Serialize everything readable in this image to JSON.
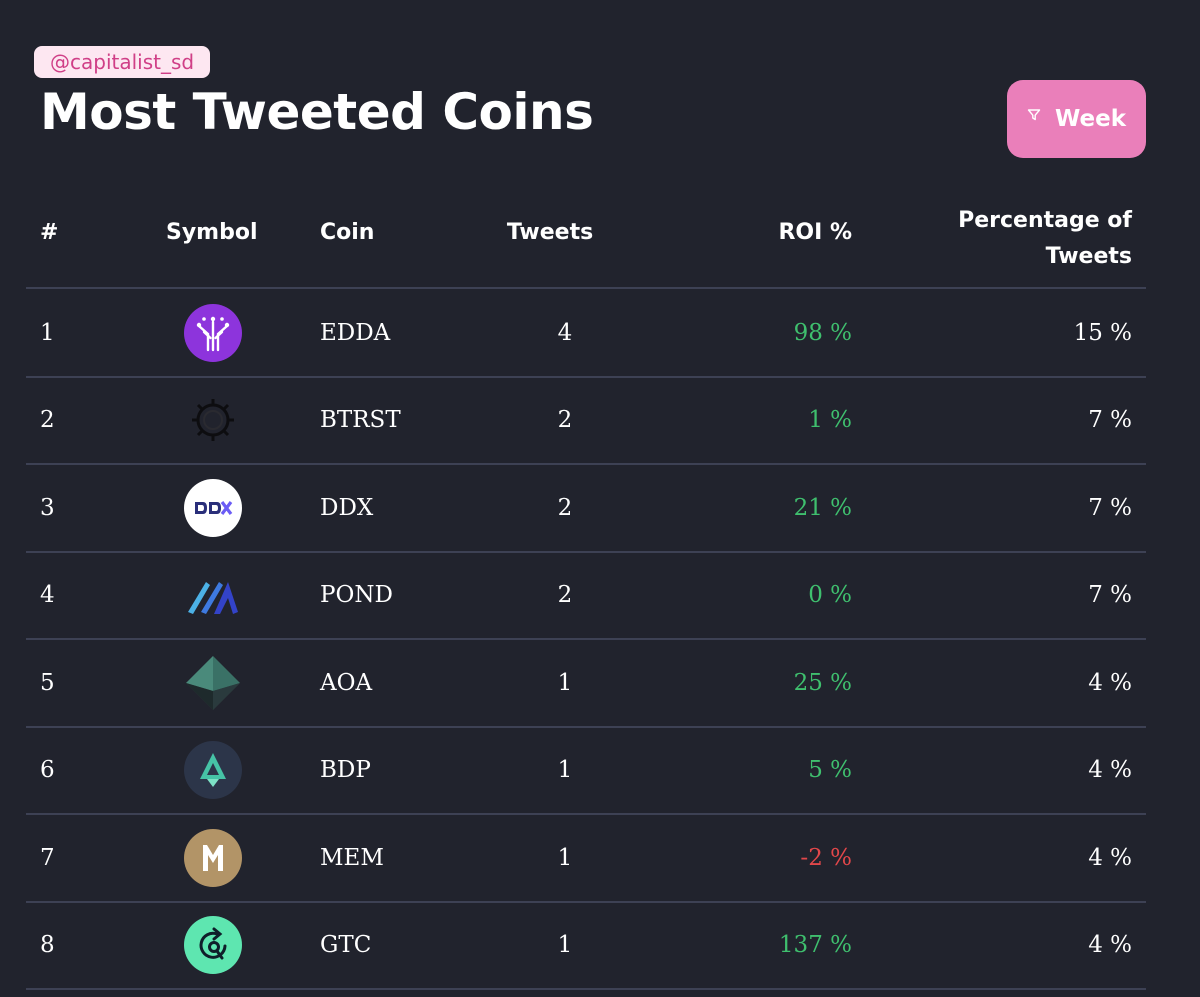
{
  "handle": "@capitalist_sd",
  "title": "Most Tweeted Coins",
  "filter": {
    "label": "Week",
    "icon": "filter-icon"
  },
  "columns": {
    "num": "#",
    "symbol": "Symbol",
    "coin": "Coin",
    "tweets": "Tweets",
    "roi": "ROI %",
    "pct_line1": "Percentage of",
    "pct_line2": "Tweets"
  },
  "colors": {
    "positive": "#3fbf6e",
    "negative": "#e2474a",
    "accent": "#ea7fba"
  },
  "rows": [
    {
      "num": "1",
      "coin": "EDDA",
      "icon": "edda-logo-icon",
      "tweets": "4",
      "roi": "98 %",
      "roi_sign": "pos",
      "pct": "15 %"
    },
    {
      "num": "2",
      "coin": "BTRST",
      "icon": "btrst-logo-icon",
      "tweets": "2",
      "roi": "1 %",
      "roi_sign": "pos",
      "pct": "7 %"
    },
    {
      "num": "3",
      "coin": "DDX",
      "icon": "ddx-logo-icon",
      "tweets": "2",
      "roi": "21 %",
      "roi_sign": "pos",
      "pct": "7 %"
    },
    {
      "num": "4",
      "coin": "POND",
      "icon": "pond-logo-icon",
      "tweets": "2",
      "roi": "0 %",
      "roi_sign": "pos",
      "pct": "7 %"
    },
    {
      "num": "5",
      "coin": "AOA",
      "icon": "aoa-logo-icon",
      "tweets": "1",
      "roi": "25 %",
      "roi_sign": "pos",
      "pct": "4 %"
    },
    {
      "num": "6",
      "coin": "BDP",
      "icon": "bdp-logo-icon",
      "tweets": "1",
      "roi": "5 %",
      "roi_sign": "pos",
      "pct": "4 %"
    },
    {
      "num": "7",
      "coin": "MEM",
      "icon": "mem-logo-icon",
      "tweets": "1",
      "roi": "-2 %",
      "roi_sign": "neg",
      "pct": "4 %"
    },
    {
      "num": "8",
      "coin": "GTC",
      "icon": "gtc-logo-icon",
      "tweets": "1",
      "roi": "137 %",
      "roi_sign": "pos",
      "pct": "4 %"
    }
  ]
}
